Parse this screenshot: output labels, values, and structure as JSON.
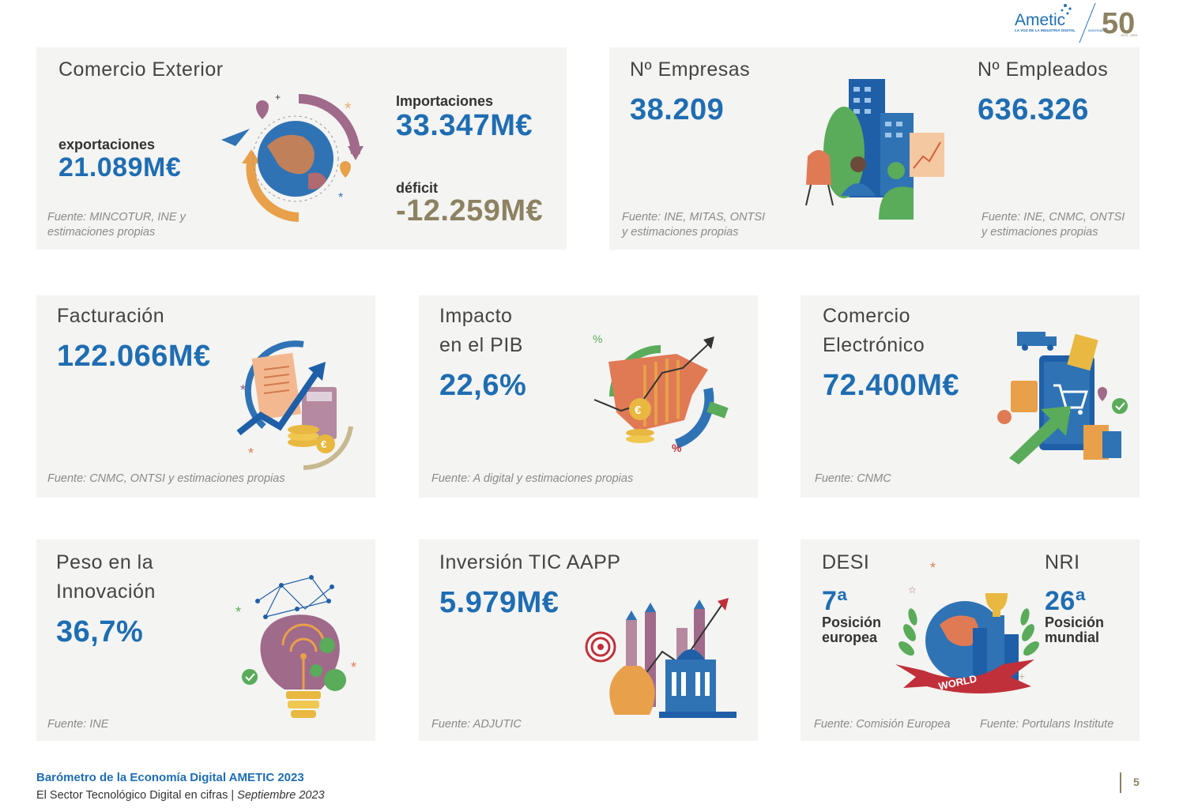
{
  "logo": {
    "name": "Ametic",
    "tagline": "LA VOZ DE LA INDUSTRIA DIGITAL",
    "anniversary_number": "50",
    "anniversary_word": "aniversario",
    "years": "1973 - 2023"
  },
  "cards": {
    "comercio_exterior": {
      "title": "Comercio Exterior",
      "exports_label": "exportaciones",
      "exports_value": "21.089M€",
      "imports_label": "Importaciones",
      "imports_value": "33.347M€",
      "deficit_label": "déficit",
      "deficit_value": "-12.259M€",
      "source_line1": "Fuente: MINCOTUR, INE y",
      "source_line2": "estimaciones propias"
    },
    "empresas": {
      "title": "Nº Empresas",
      "value": "38.209",
      "source_line1": "Fuente: INE, MITAS, ONTSI",
      "source_line2": "y estimaciones propias"
    },
    "empleados": {
      "title": "Nº Empleados",
      "value": "636.326",
      "source_line1": "Fuente: INE, CNMC, ONTSI",
      "source_line2": "y estimaciones propias"
    },
    "facturacion": {
      "title": "Facturación",
      "value": "122.066M€",
      "source": "Fuente: CNMC, ONTSI y estimaciones propias"
    },
    "pib": {
      "title_line1": "Impacto",
      "title_line2": "en el PIB",
      "value": "22,6%",
      "source": "Fuente: A digital y estimaciones propias"
    },
    "ecommerce": {
      "title_line1": "Comercio",
      "title_line2": "Electrónico",
      "value": "72.400M€",
      "source": "Fuente: CNMC"
    },
    "innovacion": {
      "title_line1": "Peso en la",
      "title_line2": "Innovación",
      "value": "36,7%",
      "source": "Fuente: INE"
    },
    "inversion": {
      "title": "Inversión TIC AAPP",
      "value": "5.979M€",
      "source": "Fuente: ADJUTIC"
    },
    "desi": {
      "title": "DESI",
      "value": "7ª",
      "label_line1": "Posición",
      "label_line2": "europea",
      "source": "Fuente: Comisión Europea"
    },
    "nri": {
      "title": "NRI",
      "value": "26ª",
      "label_line1": "Posición",
      "label_line2": "mundial",
      "source": "Fuente: Portulans Institute"
    }
  },
  "illustrations": {
    "world_banner": "WORLD"
  },
  "footer": {
    "title": "Barómetro de la Economía Digital AMETIC 2023",
    "subtitle_plain": "El Sector Tecnológico Digital en cifras | ",
    "subtitle_italic": "Septiembre 2023",
    "page_number": "5"
  },
  "colors": {
    "accent_blue": "#1f6db2",
    "olive": "#8c8262",
    "card_bg": "#f4f4f2"
  }
}
